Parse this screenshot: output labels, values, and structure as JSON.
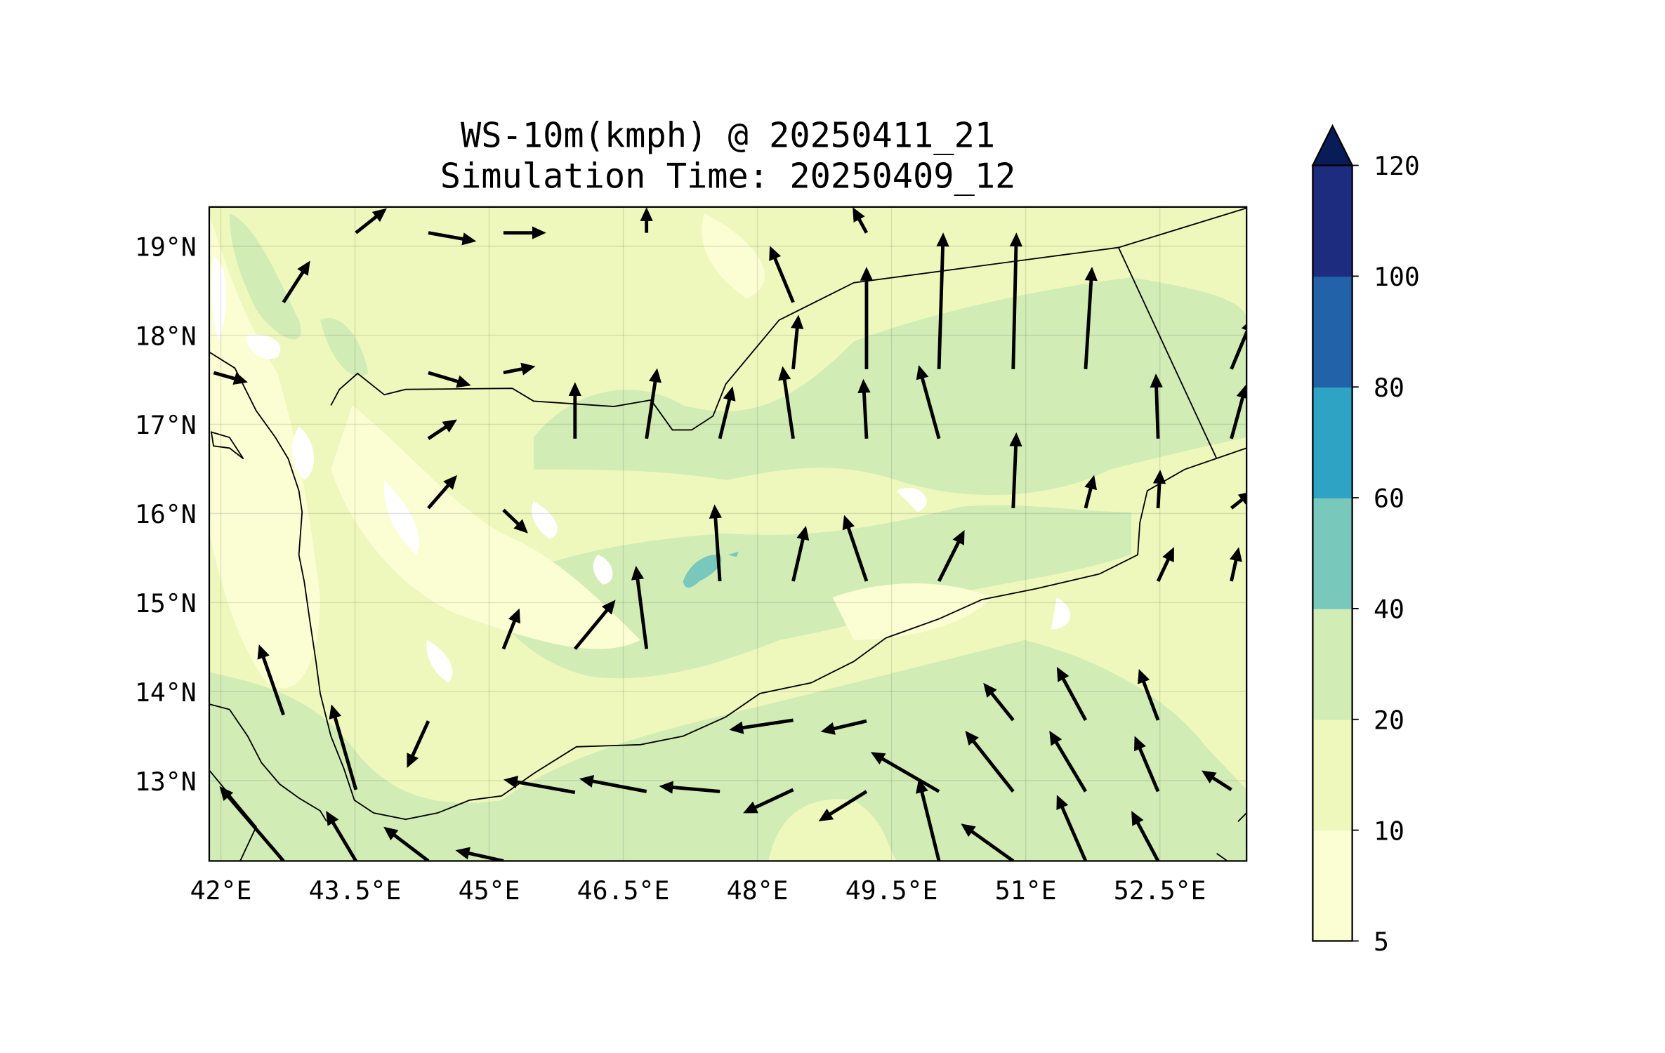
{
  "chart_data": {
    "type": "heatmap",
    "title": "WS-10m(kmph) @ 20250411_21",
    "subtitle": "Simulation Time: 20250409_12",
    "xlabel": "",
    "ylabel": "",
    "xlim": [
      41.87,
      53.47
    ],
    "ylim": [
      12.1,
      19.44
    ],
    "x_ticks": [
      {
        "value": 42,
        "label": "42°E"
      },
      {
        "value": 43.5,
        "label": "43.5°E"
      },
      {
        "value": 45,
        "label": "45°E"
      },
      {
        "value": 46.5,
        "label": "46.5°E"
      },
      {
        "value": 48,
        "label": "48°E"
      },
      {
        "value": 49.5,
        "label": "49.5°E"
      },
      {
        "value": 51,
        "label": "51°E"
      },
      {
        "value": 52.5,
        "label": "52.5°E"
      }
    ],
    "y_ticks": [
      {
        "value": 19,
        "label": "19°N"
      },
      {
        "value": 18,
        "label": "18°N"
      },
      {
        "value": 17,
        "label": "17°N"
      },
      {
        "value": 16,
        "label": "16°N"
      },
      {
        "value": 15,
        "label": "15°N"
      },
      {
        "value": 14,
        "label": "14°N"
      },
      {
        "value": 13,
        "label": "13°N"
      }
    ],
    "grid": true,
    "colorbar": {
      "levels": [
        5,
        10,
        20,
        40,
        60,
        80,
        100,
        120
      ],
      "labels": [
        "5",
        "10",
        "20",
        "40",
        "60",
        "80",
        "100",
        "120"
      ],
      "colors": [
        "#fbfdd3",
        "#eef8bd",
        "#d1ecb5",
        "#78c8bb",
        "#2fa3c3",
        "#2262a8",
        "#1d2c7f"
      ],
      "extend_color": "#081d58",
      "extend": "max"
    },
    "field_colors": {
      "low": "#ffffff",
      "lt10": "#fbfdd3",
      "lt20": "#eef8bd",
      "lt40": "#d1ecb5",
      "lt60": "#78c8bb"
    },
    "vectors_units": "kmph",
    "vectors": [
      [
        45.96,
        16.84,
        0,
        26.5
      ],
      [
        46.76,
        16.84,
        5,
        33
      ],
      [
        47.58,
        16.84,
        6,
        24.5
      ],
      [
        48.4,
        16.84,
        -5,
        34
      ],
      [
        49.22,
        16.84,
        -1.5,
        28
      ],
      [
        50.03,
        16.84,
        -9.5,
        34.5
      ],
      [
        50.86,
        16.06,
        1.5,
        35.5
      ],
      [
        50.86,
        17.62,
        1.5,
        64
      ],
      [
        50.03,
        17.62,
        2,
        64
      ],
      [
        49.22,
        17.62,
        0,
        48
      ],
      [
        48.4,
        17.62,
        2.5,
        25.5
      ],
      [
        51.67,
        17.62,
        3,
        48
      ],
      [
        52.48,
        16.84,
        -1,
        30.5
      ],
      [
        53.3,
        16.84,
        7,
        25.5
      ],
      [
        53.3,
        17.62,
        10,
        24
      ],
      [
        48.4,
        18.37,
        -11,
        26.5
      ],
      [
        49.22,
        19.15,
        -6.5,
        12
      ],
      [
        46.76,
        19.15,
        0,
        12
      ],
      [
        47.58,
        15.24,
        -2.5,
        36
      ],
      [
        46.76,
        14.48,
        -5,
        39
      ],
      [
        45.96,
        14.48,
        19,
        23
      ],
      [
        45.16,
        14.48,
        7.5,
        19
      ],
      [
        44.32,
        16.84,
        13.5,
        9
      ],
      [
        44.32,
        16.06,
        13.5,
        15.5
      ],
      [
        43.51,
        19.15,
        14.5,
        11.5
      ],
      [
        42.7,
        18.37,
        12.5,
        19.5
      ],
      [
        42.7,
        13.74,
        -11.5,
        33
      ],
      [
        43.51,
        12.9,
        -11.5,
        40
      ],
      [
        44.32,
        13.67,
        -10,
        -22
      ],
      [
        45.96,
        12.87,
        -33.5,
        6
      ],
      [
        46.76,
        12.88,
        -31.5,
        6
      ],
      [
        47.58,
        12.88,
        -28.5,
        2.5
      ],
      [
        48.4,
        12.9,
        -23.5,
        -11
      ],
      [
        49.22,
        12.88,
        -22.5,
        -14
      ],
      [
        48.4,
        13.68,
        -30,
        -4.5
      ],
      [
        49.22,
        13.67,
        -21.5,
        -5
      ],
      [
        50.03,
        12.88,
        -32,
        18.5
      ],
      [
        50.86,
        12.88,
        -22.5,
        28.5
      ],
      [
        51.67,
        12.88,
        -17,
        28.5
      ],
      [
        52.48,
        12.88,
        -11,
        26
      ],
      [
        50.03,
        12.1,
        -9.5,
        38.5
      ],
      [
        50.86,
        12.1,
        -24.5,
        17.5
      ],
      [
        51.67,
        12.1,
        -13.5,
        31
      ],
      [
        52.48,
        12.1,
        -12.5,
        23.5
      ],
      [
        42.7,
        12.1,
        -30,
        35
      ],
      [
        43.51,
        12.1,
        -14,
        23.5
      ],
      [
        44.32,
        12.1,
        -21,
        16
      ],
      [
        45.16,
        12.1,
        -22.5,
        5
      ],
      [
        53.3,
        12.9,
        -14,
        9
      ],
      [
        50.86,
        13.68,
        -14,
        17.5
      ],
      [
        51.67,
        13.68,
        -13.5,
        25
      ],
      [
        52.48,
        13.68,
        -9,
        24
      ],
      [
        49.22,
        15.24,
        -10.5,
        31
      ],
      [
        50.03,
        15.24,
        12,
        24
      ],
      [
        48.4,
        15.24,
        6,
        26
      ],
      [
        45.16,
        16.04,
        11.5,
        -11
      ],
      [
        44.32,
        19.15,
        22.5,
        -4
      ],
      [
        45.16,
        19.15,
        20,
        0
      ],
      [
        44.32,
        17.58,
        20,
        -6
      ],
      [
        45.16,
        17.58,
        15,
        3
      ],
      [
        41.92,
        17.58,
        16,
        -4.5
      ],
      [
        52.48,
        16.06,
        1,
        18
      ],
      [
        53.3,
        16.06,
        10,
        8
      ],
      [
        52.48,
        15.24,
        7.5,
        16
      ],
      [
        53.3,
        15.24,
        3.5,
        16
      ],
      [
        51.67,
        16.06,
        4,
        15.5
      ]
    ]
  }
}
